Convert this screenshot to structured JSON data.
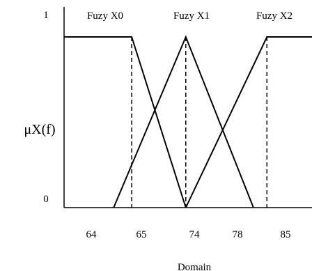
{
  "chart_data": {
    "type": "line",
    "chart_kind": "fuzzy membership functions",
    "title": "",
    "xlabel": "Domain",
    "ylabel": "μX(f)",
    "ylim": [
      0,
      1
    ],
    "y_ticks": [
      "0",
      "1"
    ],
    "x_ticks": [
      {
        "label": "64",
        "value": 64
      },
      {
        "label": "65",
        "value": 65
      },
      {
        "label": "74",
        "value": 74
      },
      {
        "label": "78",
        "value": 78
      },
      {
        "label": "85",
        "value": 85
      }
    ],
    "xlim": [
      60.5,
      88
    ],
    "grid": false,
    "legend": "none",
    "series": [
      {
        "name": "Fuzy X0",
        "points": [
          [
            60.5,
            1
          ],
          [
            68,
            1
          ],
          [
            74,
            0
          ]
        ]
      },
      {
        "name": "Fuzy X1",
        "points": [
          [
            66,
            0
          ],
          [
            74,
            1
          ],
          [
            81.5,
            0
          ]
        ]
      },
      {
        "name": "Fuzy X2",
        "points": [
          [
            74,
            0
          ],
          [
            83,
            1
          ],
          [
            88,
            1
          ]
        ]
      }
    ],
    "dashed_markers": [
      {
        "x": 68,
        "y": 1
      },
      {
        "x": 74,
        "y": 1
      },
      {
        "x": 83,
        "y": 1
      }
    ],
    "colors": {
      "line": "#000000",
      "background": "#ffffff"
    }
  }
}
